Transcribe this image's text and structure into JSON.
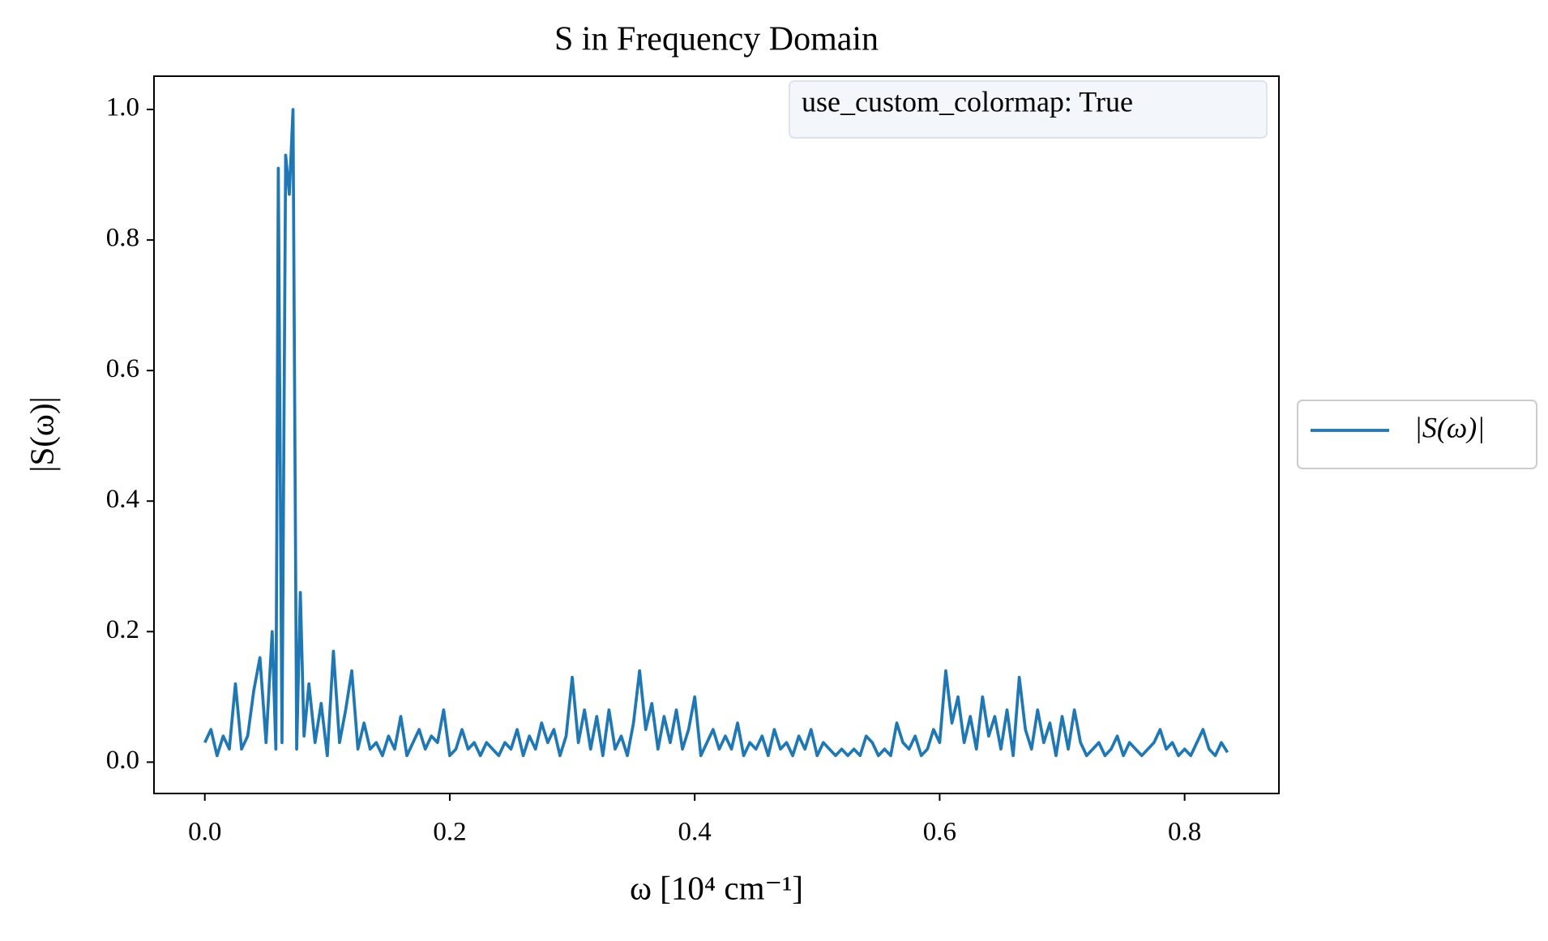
{
  "chart_data": {
    "type": "line",
    "title": "S in Frequency Domain",
    "xlabel": "ω [10⁴ cm⁻¹]",
    "ylabel": "|S(ω)|",
    "annotation": "use_custom_colormap: True",
    "legend": "right",
    "x": [
      0,
      0.005,
      0.01,
      0.015,
      0.02,
      0.025,
      0.03,
      0.035,
      0.04,
      0.045,
      0.05,
      0.055,
      0.058,
      0.06,
      0.063,
      0.066,
      0.069,
      0.072,
      0.075,
      0.078,
      0.081,
      0.085,
      0.09,
      0.095,
      0.1,
      0.105,
      0.11,
      0.115,
      0.12,
      0.125,
      0.13,
      0.135,
      0.14,
      0.145,
      0.15,
      0.155,
      0.16,
      0.165,
      0.17,
      0.175,
      0.18,
      0.185,
      0.19,
      0.195,
      0.2,
      0.205,
      0.21,
      0.215,
      0.22,
      0.225,
      0.23,
      0.235,
      0.24,
      0.245,
      0.25,
      0.255,
      0.26,
      0.265,
      0.27,
      0.275,
      0.28,
      0.285,
      0.29,
      0.295,
      0.3,
      0.305,
      0.31,
      0.315,
      0.32,
      0.325,
      0.33,
      0.335,
      0.34,
      0.345,
      0.35,
      0.355,
      0.36,
      0.365,
      0.37,
      0.375,
      0.38,
      0.385,
      0.39,
      0.395,
      0.4,
      0.405,
      0.41,
      0.415,
      0.42,
      0.425,
      0.43,
      0.435,
      0.44,
      0.445,
      0.45,
      0.455,
      0.46,
      0.465,
      0.47,
      0.475,
      0.48,
      0.485,
      0.49,
      0.495,
      0.5,
      0.505,
      0.51,
      0.515,
      0.52,
      0.525,
      0.53,
      0.535,
      0.54,
      0.545,
      0.55,
      0.555,
      0.56,
      0.565,
      0.57,
      0.575,
      0.58,
      0.585,
      0.59,
      0.595,
      0.6,
      0.605,
      0.61,
      0.615,
      0.62,
      0.625,
      0.63,
      0.635,
      0.64,
      0.645,
      0.65,
      0.655,
      0.66,
      0.665,
      0.67,
      0.675,
      0.68,
      0.685,
      0.69,
      0.695,
      0.7,
      0.705,
      0.71,
      0.715,
      0.72,
      0.725,
      0.73,
      0.735,
      0.74,
      0.745,
      0.75,
      0.755,
      0.76,
      0.765,
      0.77,
      0.775,
      0.78,
      0.785,
      0.79,
      0.795,
      0.8,
      0.805,
      0.81,
      0.815,
      0.82,
      0.825,
      0.83,
      0.835
    ],
    "series": [
      {
        "name": "|S(ω)|",
        "color": "#1f77b4",
        "values": [
          0.03,
          0.05,
          0.01,
          0.04,
          0.02,
          0.12,
          0.02,
          0.04,
          0.11,
          0.16,
          0.03,
          0.2,
          0.02,
          0.91,
          0.03,
          0.93,
          0.87,
          1.0,
          0.02,
          0.26,
          0.04,
          0.12,
          0.03,
          0.09,
          0.01,
          0.17,
          0.03,
          0.08,
          0.14,
          0.02,
          0.06,
          0.02,
          0.03,
          0.01,
          0.04,
          0.02,
          0.07,
          0.01,
          0.03,
          0.05,
          0.02,
          0.04,
          0.03,
          0.08,
          0.01,
          0.02,
          0.05,
          0.02,
          0.03,
          0.01,
          0.03,
          0.02,
          0.01,
          0.03,
          0.02,
          0.05,
          0.01,
          0.04,
          0.02,
          0.06,
          0.03,
          0.05,
          0.01,
          0.04,
          0.13,
          0.03,
          0.08,
          0.02,
          0.07,
          0.01,
          0.08,
          0.02,
          0.04,
          0.01,
          0.06,
          0.14,
          0.05,
          0.09,
          0.02,
          0.07,
          0.03,
          0.08,
          0.02,
          0.05,
          0.1,
          0.01,
          0.03,
          0.05,
          0.02,
          0.04,
          0.02,
          0.06,
          0.01,
          0.03,
          0.02,
          0.04,
          0.01,
          0.05,
          0.02,
          0.03,
          0.01,
          0.04,
          0.02,
          0.05,
          0.01,
          0.03,
          0.02,
          0.01,
          0.02,
          0.01,
          0.02,
          0.01,
          0.04,
          0.03,
          0.01,
          0.02,
          0.01,
          0.06,
          0.03,
          0.02,
          0.04,
          0.01,
          0.02,
          0.05,
          0.03,
          0.14,
          0.06,
          0.1,
          0.03,
          0.07,
          0.02,
          0.1,
          0.04,
          0.07,
          0.02,
          0.08,
          0.01,
          0.13,
          0.05,
          0.02,
          0.08,
          0.03,
          0.06,
          0.01,
          0.07,
          0.02,
          0.08,
          0.03,
          0.01,
          0.02,
          0.03,
          0.01,
          0.02,
          0.04,
          0.01,
          0.03,
          0.02,
          0.01,
          0.02,
          0.03,
          0.05,
          0.02,
          0.03,
          0.01,
          0.02,
          0.01,
          0.03,
          0.05,
          0.02,
          0.01,
          0.03,
          0.015
        ]
      }
    ],
    "xlim": [
      -0.0415,
      0.877
    ],
    "ylim": [
      -0.048,
      1.051
    ],
    "xticks": [
      {
        "value": 0,
        "label": "0.0"
      },
      0.2,
      0.4,
      0.6,
      0.8
    ],
    "yticks": [
      {
        "value": 0,
        "label": "0.0"
      },
      0.2,
      0.4,
      0.6,
      0.8,
      {
        "value": 1,
        "label": "1.0"
      }
    ],
    "grid": false
  }
}
